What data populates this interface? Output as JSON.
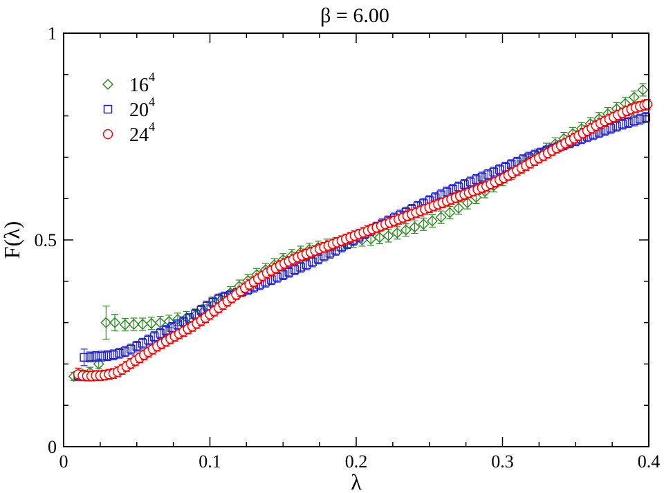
{
  "chart_data": {
    "type": "scatter",
    "title": "β = 6.00",
    "xlabel": "λ",
    "ylabel": "F(λ)",
    "xlim": [
      0,
      0.4
    ],
    "ylim": [
      0,
      1
    ],
    "xticks": [
      0,
      0.1,
      0.2,
      0.3,
      0.4
    ],
    "xtick_labels": [
      "0",
      "0.1",
      "0.2",
      "0.3",
      "0.4"
    ],
    "yticks": [
      0,
      0.5,
      1
    ],
    "ytick_labels": [
      "0",
      "0.5",
      "1"
    ],
    "x_minor_step": 0.025,
    "y_minor_step": 0.1,
    "grid": false,
    "legend_position": "top-left",
    "series": [
      {
        "name": "16",
        "name_superscript": "4",
        "marker": "diamond",
        "color": "#2e8b22",
        "x": [
          0.007,
          0.013,
          0.018,
          0.024,
          0.029,
          0.035,
          0.042,
          0.048,
          0.054,
          0.06,
          0.066,
          0.072,
          0.078,
          0.084,
          0.09,
          0.096,
          0.102,
          0.108,
          0.114,
          0.12,
          0.126,
          0.132,
          0.138,
          0.144,
          0.15,
          0.156,
          0.162,
          0.168,
          0.174,
          0.18,
          0.186,
          0.192,
          0.198,
          0.204,
          0.21,
          0.216,
          0.222,
          0.228,
          0.234,
          0.24,
          0.246,
          0.252,
          0.258,
          0.264,
          0.27,
          0.276,
          0.282,
          0.288,
          0.294,
          0.3,
          0.306,
          0.312,
          0.318,
          0.324,
          0.33,
          0.336,
          0.342,
          0.348,
          0.354,
          0.36,
          0.366,
          0.372,
          0.378,
          0.384,
          0.39,
          0.396
        ],
        "y": [
          0.17,
          0.175,
          0.18,
          0.2,
          0.3,
          0.3,
          0.295,
          0.296,
          0.296,
          0.298,
          0.3,
          0.303,
          0.308,
          0.312,
          0.318,
          0.328,
          0.342,
          0.356,
          0.372,
          0.388,
          0.402,
          0.416,
          0.428,
          0.44,
          0.452,
          0.462,
          0.47,
          0.477,
          0.482,
          0.487,
          0.49,
          0.493,
          0.497,
          0.5,
          0.502,
          0.506,
          0.51,
          0.517,
          0.524,
          0.531,
          0.538,
          0.546,
          0.555,
          0.566,
          0.577,
          0.59,
          0.603,
          0.617,
          0.631,
          0.646,
          0.661,
          0.676,
          0.691,
          0.705,
          0.719,
          0.732,
          0.745,
          0.757,
          0.769,
          0.781,
          0.793,
          0.805,
          0.817,
          0.83,
          0.845,
          0.863
        ],
        "yerr": [
          0.01,
          0.01,
          0.012,
          0.012,
          0.04,
          0.02,
          0.015,
          0.015,
          0.015,
          0.015,
          0.015,
          0.015,
          0.015,
          0.015,
          0.015,
          0.015,
          0.015,
          0.015,
          0.015,
          0.015,
          0.015,
          0.015,
          0.015,
          0.015,
          0.015,
          0.015,
          0.015,
          0.015,
          0.015,
          0.015,
          0.015,
          0.015,
          0.015,
          0.015,
          0.015,
          0.015,
          0.015,
          0.015,
          0.015,
          0.015,
          0.015,
          0.015,
          0.015,
          0.015,
          0.015,
          0.015,
          0.015,
          0.015,
          0.015,
          0.015,
          0.015,
          0.015,
          0.015,
          0.015,
          0.015,
          0.015,
          0.015,
          0.015,
          0.015,
          0.015,
          0.015,
          0.015,
          0.015,
          0.015,
          0.015,
          0.015
        ]
      },
      {
        "name": "20",
        "name_superscript": "4",
        "marker": "square",
        "color": "#1f1fd6",
        "x": [
          0.01,
          0.014,
          0.018,
          0.022,
          0.026,
          0.03,
          0.034,
          0.038,
          0.042,
          0.046,
          0.05,
          0.054,
          0.058,
          0.062,
          0.066,
          0.07,
          0.074,
          0.078,
          0.082,
          0.086,
          0.09,
          0.094,
          0.098,
          0.102,
          0.106,
          0.11,
          0.114,
          0.118,
          0.122,
          0.126,
          0.13,
          0.134,
          0.138,
          0.142,
          0.146,
          0.15,
          0.154,
          0.158,
          0.162,
          0.166,
          0.17,
          0.174,
          0.178,
          0.182,
          0.186,
          0.19,
          0.194,
          0.198,
          0.202,
          0.206,
          0.21,
          0.214,
          0.218,
          0.222,
          0.226,
          0.23,
          0.234,
          0.238,
          0.242,
          0.246,
          0.25,
          0.254,
          0.258,
          0.262,
          0.266,
          0.27,
          0.274,
          0.278,
          0.282,
          0.286,
          0.29,
          0.294,
          0.298,
          0.302,
          0.306,
          0.31,
          0.314,
          0.318,
          0.322,
          0.326,
          0.33,
          0.334,
          0.338,
          0.342,
          0.346,
          0.35,
          0.354,
          0.358,
          0.362,
          0.366,
          0.37,
          0.374,
          0.378,
          0.382,
          0.386,
          0.39,
          0.394,
          0.398
        ],
        "y": [
          0.172,
          0.216,
          0.217,
          0.218,
          0.219,
          0.22,
          0.222,
          0.226,
          0.23,
          0.236,
          0.243,
          0.25,
          0.258,
          0.266,
          0.274,
          0.281,
          0.288,
          0.295,
          0.302,
          0.31,
          0.32,
          0.33,
          0.34,
          0.35,
          0.357,
          0.362,
          0.366,
          0.37,
          0.375,
          0.38,
          0.386,
          0.392,
          0.398,
          0.404,
          0.41,
          0.416,
          0.422,
          0.428,
          0.434,
          0.44,
          0.447,
          0.454,
          0.461,
          0.468,
          0.475,
          0.483,
          0.491,
          0.499,
          0.507,
          0.515,
          0.523,
          0.531,
          0.539,
          0.546,
          0.553,
          0.56,
          0.567,
          0.574,
          0.581,
          0.588,
          0.595,
          0.602,
          0.609,
          0.616,
          0.622,
          0.628,
          0.634,
          0.64,
          0.646,
          0.652,
          0.658,
          0.664,
          0.67,
          0.676,
          0.682,
          0.688,
          0.694,
          0.7,
          0.705,
          0.71,
          0.715,
          0.72,
          0.725,
          0.73,
          0.735,
          0.74,
          0.745,
          0.75,
          0.755,
          0.76,
          0.765,
          0.77,
          0.775,
          0.78,
          0.784,
          0.788,
          0.792,
          0.796
        ],
        "yerr": [
          0.01,
          0.02,
          0.012,
          0.012,
          0.012,
          0.012,
          0.012,
          0.012,
          0.012,
          0.012,
          0.012,
          0.012,
          0.012,
          0.012,
          0.012,
          0.012,
          0.012,
          0.012,
          0.012,
          0.012,
          0.012,
          0.012,
          0.012,
          0.012,
          0.012,
          0.012,
          0.012,
          0.012,
          0.012,
          0.012,
          0.012,
          0.012,
          0.012,
          0.012,
          0.012,
          0.012,
          0.012,
          0.012,
          0.012,
          0.012,
          0.012,
          0.012,
          0.012,
          0.012,
          0.012,
          0.012,
          0.012,
          0.012,
          0.012,
          0.012,
          0.012,
          0.012,
          0.012,
          0.012,
          0.012,
          0.012,
          0.012,
          0.012,
          0.012,
          0.012,
          0.012,
          0.012,
          0.012,
          0.012,
          0.012,
          0.012,
          0.012,
          0.012,
          0.012,
          0.012,
          0.012,
          0.012,
          0.012,
          0.012,
          0.012,
          0.012,
          0.012,
          0.012,
          0.012,
          0.012,
          0.012,
          0.012,
          0.012,
          0.012,
          0.012,
          0.012,
          0.012,
          0.012,
          0.012,
          0.012,
          0.012,
          0.012,
          0.012,
          0.012,
          0.012,
          0.012,
          0.012,
          0.012
        ]
      },
      {
        "name": "24",
        "name_superscript": "4",
        "marker": "circle",
        "color": "#ff0000",
        "x": [
          0.01,
          0.013,
          0.016,
          0.019,
          0.022,
          0.025,
          0.028,
          0.031,
          0.034,
          0.037,
          0.04,
          0.043,
          0.046,
          0.049,
          0.052,
          0.055,
          0.058,
          0.061,
          0.064,
          0.067,
          0.07,
          0.073,
          0.076,
          0.079,
          0.082,
          0.085,
          0.088,
          0.091,
          0.094,
          0.097,
          0.1,
          0.103,
          0.106,
          0.109,
          0.112,
          0.115,
          0.118,
          0.121,
          0.124,
          0.127,
          0.13,
          0.133,
          0.136,
          0.139,
          0.142,
          0.145,
          0.148,
          0.151,
          0.154,
          0.157,
          0.16,
          0.163,
          0.166,
          0.169,
          0.172,
          0.175,
          0.178,
          0.181,
          0.184,
          0.187,
          0.19,
          0.193,
          0.196,
          0.199,
          0.202,
          0.205,
          0.208,
          0.211,
          0.214,
          0.217,
          0.22,
          0.223,
          0.226,
          0.229,
          0.232,
          0.235,
          0.238,
          0.241,
          0.244,
          0.247,
          0.25,
          0.253,
          0.256,
          0.259,
          0.262,
          0.265,
          0.268,
          0.271,
          0.274,
          0.277,
          0.28,
          0.283,
          0.286,
          0.289,
          0.292,
          0.295,
          0.298,
          0.301,
          0.304,
          0.307,
          0.31,
          0.313,
          0.316,
          0.319,
          0.322,
          0.325,
          0.328,
          0.331,
          0.334,
          0.337,
          0.34,
          0.343,
          0.346,
          0.349,
          0.352,
          0.355,
          0.358,
          0.361,
          0.364,
          0.367,
          0.37,
          0.373,
          0.376,
          0.379,
          0.382,
          0.385,
          0.388,
          0.391,
          0.394,
          0.397,
          0.399
        ],
        "y": [
          0.175,
          0.172,
          0.171,
          0.171,
          0.172,
          0.172,
          0.173,
          0.175,
          0.177,
          0.181,
          0.187,
          0.194,
          0.201,
          0.208,
          0.215,
          0.222,
          0.229,
          0.236,
          0.243,
          0.249,
          0.255,
          0.261,
          0.267,
          0.273,
          0.279,
          0.285,
          0.291,
          0.298,
          0.305,
          0.312,
          0.32,
          0.328,
          0.336,
          0.344,
          0.352,
          0.36,
          0.368,
          0.376,
          0.384,
          0.392,
          0.399,
          0.406,
          0.413,
          0.42,
          0.426,
          0.432,
          0.438,
          0.443,
          0.448,
          0.453,
          0.458,
          0.462,
          0.466,
          0.47,
          0.474,
          0.478,
          0.482,
          0.486,
          0.49,
          0.494,
          0.498,
          0.502,
          0.506,
          0.51,
          0.514,
          0.518,
          0.522,
          0.526,
          0.53,
          0.534,
          0.538,
          0.542,
          0.546,
          0.55,
          0.554,
          0.558,
          0.562,
          0.566,
          0.57,
          0.574,
          0.578,
          0.582,
          0.586,
          0.59,
          0.594,
          0.598,
          0.602,
          0.606,
          0.61,
          0.614,
          0.618,
          0.622,
          0.626,
          0.63,
          0.635,
          0.64,
          0.645,
          0.65,
          0.656,
          0.662,
          0.668,
          0.674,
          0.68,
          0.686,
          0.692,
          0.698,
          0.704,
          0.71,
          0.716,
          0.722,
          0.728,
          0.734,
          0.74,
          0.746,
          0.752,
          0.758,
          0.764,
          0.77,
          0.776,
          0.782,
          0.787,
          0.792,
          0.797,
          0.802,
          0.807,
          0.812,
          0.816,
          0.82,
          0.823,
          0.826,
          0.828
        ],
        "yerr": [
          0.015,
          0.012,
          0.012,
          0.012,
          0.012,
          0.012,
          0.012,
          0.012,
          0.012,
          0.012,
          0.012,
          0.012,
          0.012,
          0.012,
          0.012,
          0.012,
          0.012,
          0.012,
          0.012,
          0.012,
          0.012,
          0.012,
          0.012,
          0.012,
          0.012,
          0.012,
          0.012,
          0.012,
          0.012,
          0.012,
          0.012,
          0.012,
          0.012,
          0.012,
          0.012,
          0.012,
          0.012,
          0.012,
          0.012,
          0.012,
          0.012,
          0.012,
          0.012,
          0.012,
          0.012,
          0.012,
          0.012,
          0.012,
          0.012,
          0.012,
          0.012,
          0.012,
          0.012,
          0.012,
          0.012,
          0.012,
          0.012,
          0.012,
          0.012,
          0.012,
          0.012,
          0.012,
          0.012,
          0.012,
          0.012,
          0.012,
          0.012,
          0.012,
          0.012,
          0.012,
          0.012,
          0.012,
          0.012,
          0.012,
          0.012,
          0.012,
          0.012,
          0.012,
          0.012,
          0.012,
          0.012,
          0.012,
          0.012,
          0.012,
          0.012,
          0.012,
          0.012,
          0.012,
          0.012,
          0.012,
          0.012,
          0.012,
          0.012,
          0.012,
          0.012,
          0.012,
          0.012,
          0.012,
          0.012,
          0.012,
          0.012,
          0.012,
          0.012,
          0.012,
          0.012,
          0.012,
          0.012,
          0.012,
          0.012,
          0.012,
          0.012,
          0.012,
          0.012,
          0.012,
          0.012,
          0.012,
          0.012,
          0.012,
          0.012,
          0.012,
          0.012,
          0.012,
          0.012,
          0.012,
          0.012,
          0.012,
          0.012,
          0.012,
          0.012,
          0.012,
          0.012
        ]
      }
    ]
  }
}
